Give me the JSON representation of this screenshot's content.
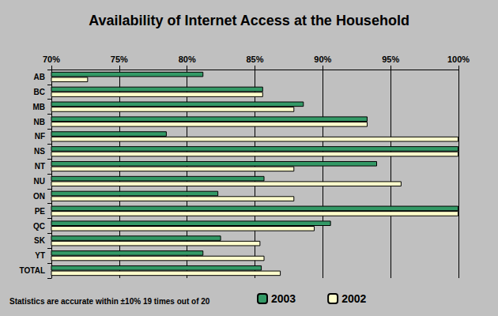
{
  "chart_data": {
    "type": "bar",
    "orientation": "horizontal",
    "title": "Availability of Internet Access at the Household",
    "annotation": "Statistics are accurate within ±10% 19 times out of 20",
    "categories": [
      "AB",
      "BC",
      "MB",
      "NB",
      "NF",
      "NS",
      "NT",
      "NU",
      "ON",
      "PE",
      "QC",
      "SK",
      "YT",
      "TOTAL"
    ],
    "series": [
      {
        "name": "2003",
        "color": "#339966",
        "values": [
          81.2,
          85.6,
          88.6,
          93.3,
          78.5,
          100,
          94,
          85.7,
          82.3,
          100,
          90.6,
          82.5,
          81.2,
          85.5
        ]
      },
      {
        "name": "2002",
        "color": "#ffffcc",
        "values": [
          72.7,
          85.6,
          87.9,
          93.3,
          100,
          100,
          87.9,
          95.8,
          87.9,
          100,
          89.4,
          85.4,
          85.7,
          86.9
        ]
      }
    ],
    "xlim": [
      70,
      100
    ],
    "xticks": [
      {
        "value": 70,
        "label": "70%"
      },
      {
        "value": 75,
        "label": "75%"
      },
      {
        "value": 80,
        "label": "80%"
      },
      {
        "value": 85,
        "label": "85%"
      },
      {
        "value": 90,
        "label": "90%"
      },
      {
        "value": 95,
        "label": "95%"
      },
      {
        "value": 100,
        "label": "100%"
      }
    ],
    "grid": true,
    "legend": "bottom"
  }
}
